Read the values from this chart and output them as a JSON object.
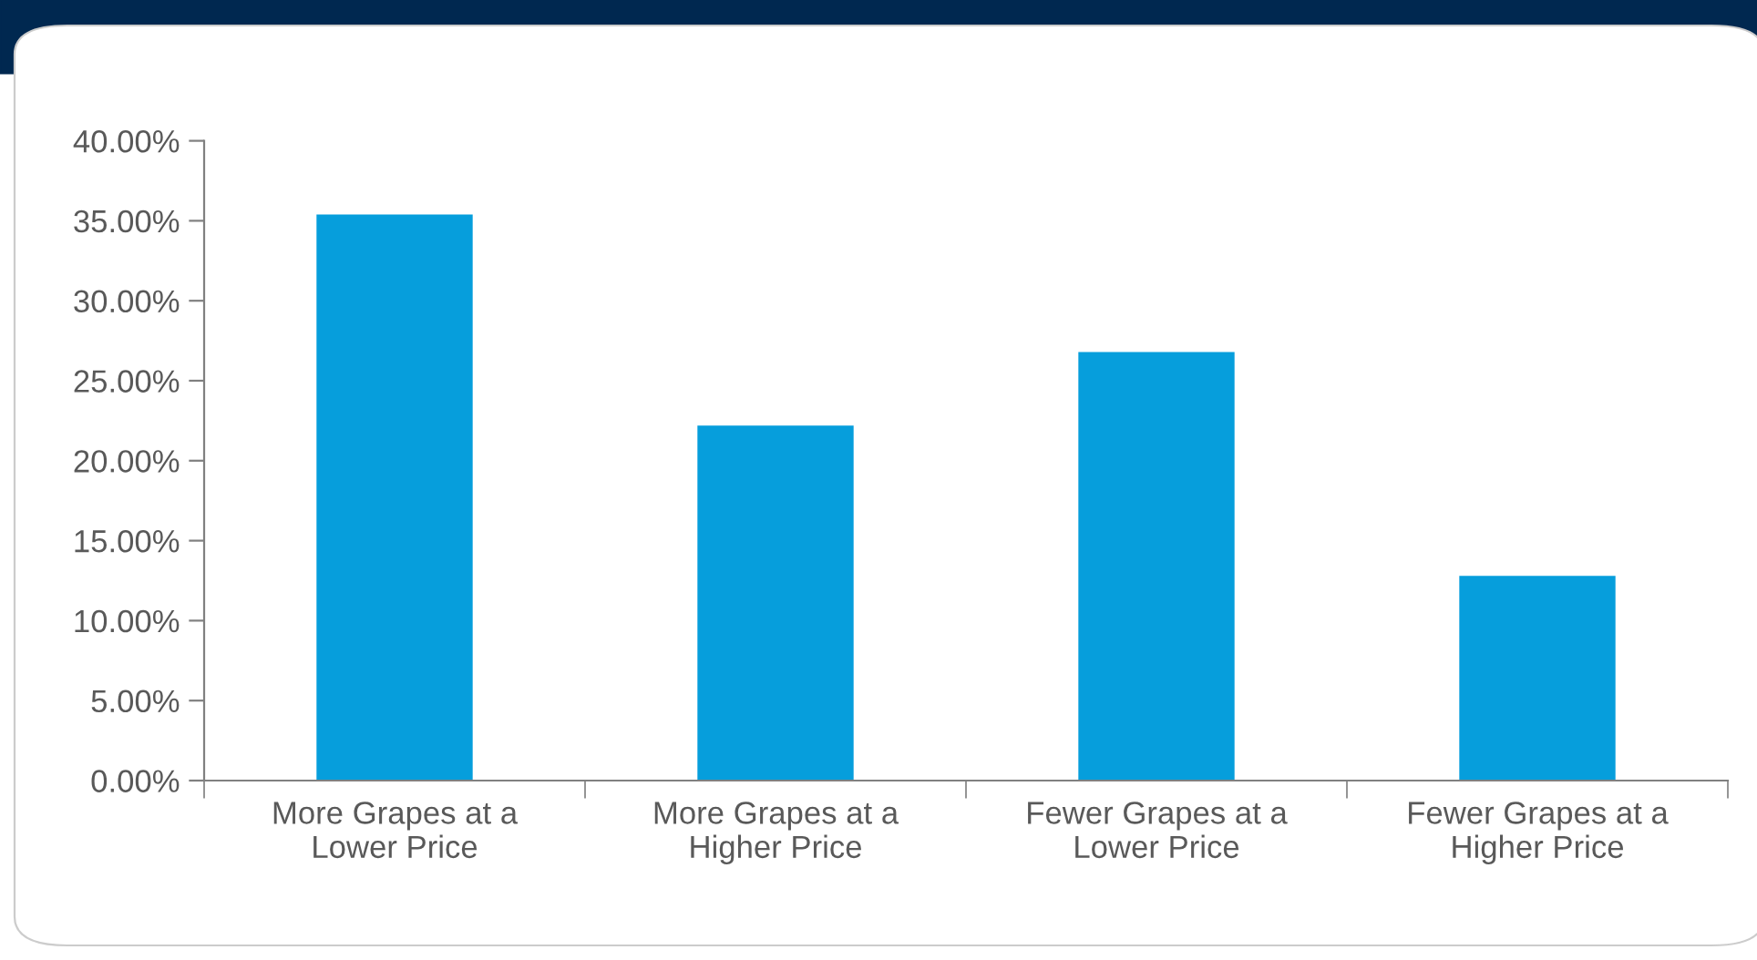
{
  "chart_data": {
    "type": "bar",
    "categories": [
      "More Grapes at a\nLower Price",
      "More Grapes at a\nHigher Price",
      "Fewer Grapes at a\nLower Price",
      "Fewer Grapes at a\nHigher Price"
    ],
    "values": [
      35.4,
      22.2,
      26.8,
      12.8
    ],
    "color": "#069edc",
    "ylim": [
      0,
      40
    ],
    "yticks": [
      {
        "value": 0,
        "label": "0.00%"
      },
      {
        "value": 5,
        "label": "5.00%"
      },
      {
        "value": 10,
        "label": "10.00%"
      },
      {
        "value": 15,
        "label": "15.00%"
      },
      {
        "value": 20,
        "label": "20.00%"
      },
      {
        "value": 25,
        "label": "25.00%"
      },
      {
        "value": 30,
        "label": "30.00%"
      },
      {
        "value": 35,
        "label": "35.00%"
      },
      {
        "value": 40,
        "label": "40.00%"
      }
    ],
    "grid": false
  }
}
